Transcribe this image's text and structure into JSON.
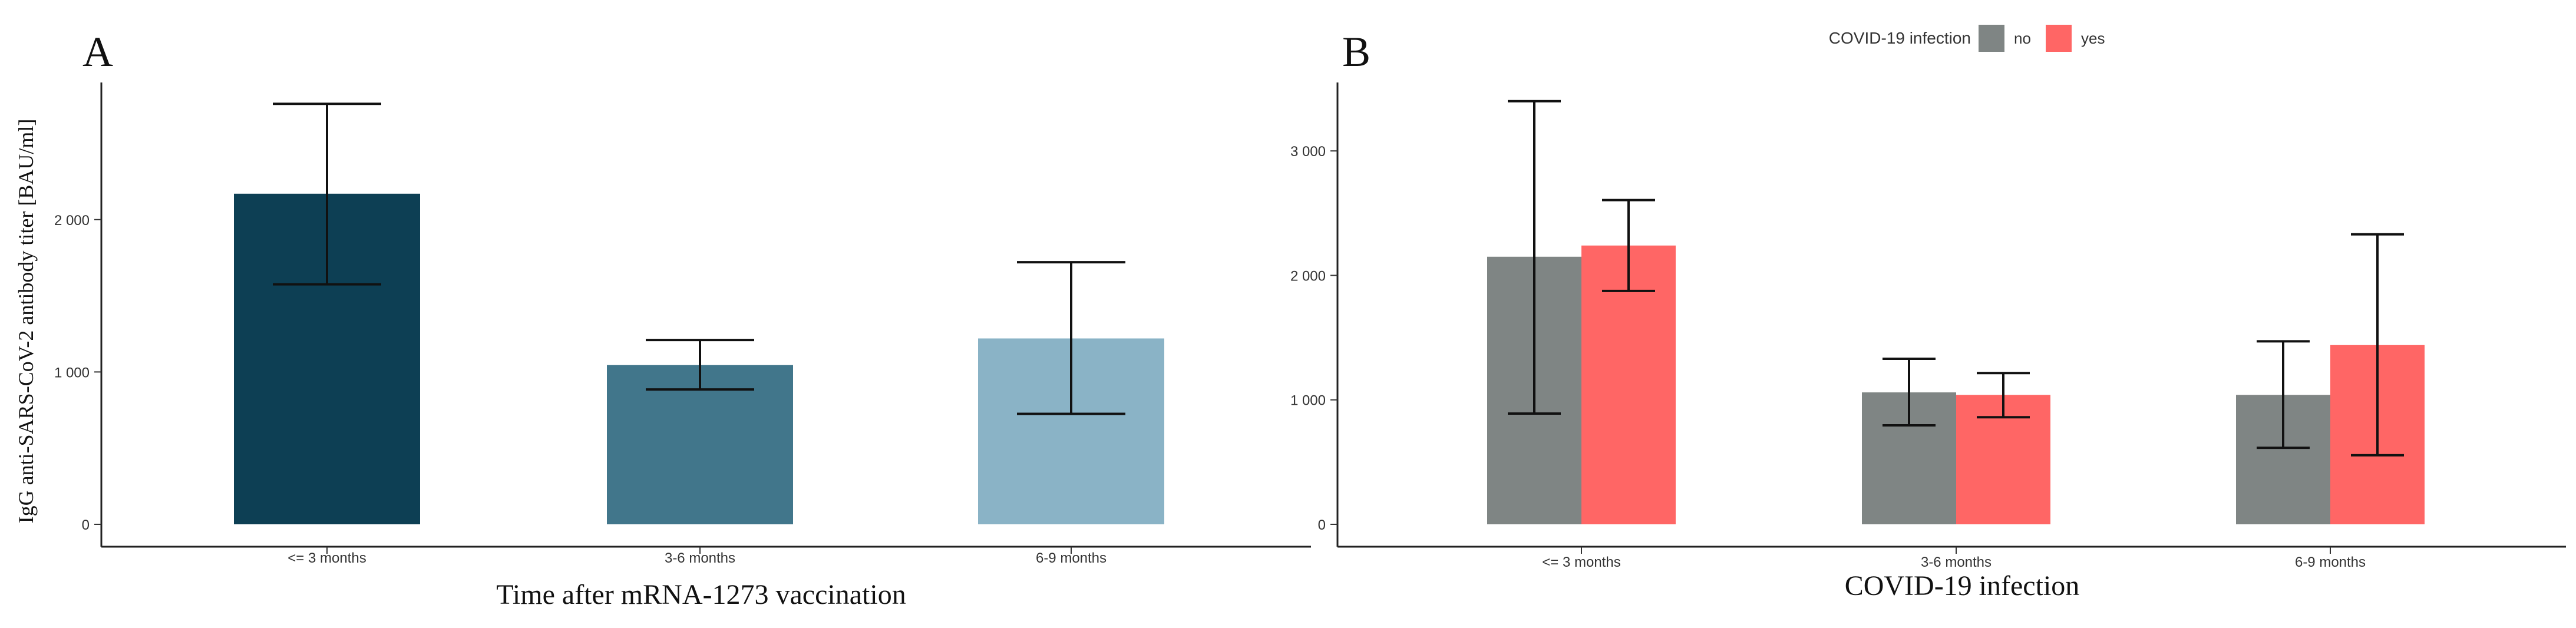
{
  "panel_a": {
    "letter": "A",
    "chart_data": {
      "type": "bar",
      "title": "",
      "xlabel": "Time after mRNA-1273 vaccination",
      "ylabel": "IgG anti-SARS-CoV-2 antibody titer [BAU/ml]",
      "categories": [
        "<= 3 months",
        "3-6 months",
        "6-9 months"
      ],
      "values": [
        2170,
        1045,
        1220
      ],
      "error_low": [
        1575,
        885,
        725
      ],
      "error_high": [
        2760,
        1210,
        1720
      ],
      "bar_colors": [
        "#0d3f54",
        "#41768b",
        "#8ab3c6"
      ],
      "yticks": [
        0,
        1000,
        2000
      ],
      "ytick_labels": [
        "0",
        "1 000",
        "2 000"
      ],
      "ylim": [
        0,
        2900
      ]
    }
  },
  "panel_b": {
    "letter": "B",
    "chart_data": {
      "type": "bar",
      "title": "",
      "xlabel": "COVID-19 infection",
      "ylabel": "",
      "categories": [
        "<= 3 months",
        "3-6 months",
        "6-9 months"
      ],
      "legend_title": "COVID-19 infection",
      "legend_position": "top",
      "series": [
        {
          "name": "no",
          "color": "#7f8584",
          "values": [
            2150,
            1060,
            1040
          ],
          "error_low": [
            890,
            795,
            615
          ],
          "error_high": [
            3400,
            1330,
            1470
          ]
        },
        {
          "name": "yes",
          "color": "#ff6665",
          "values": [
            2240,
            1040,
            1440
          ],
          "error_low": [
            1875,
            860,
            555
          ],
          "error_high": [
            2605,
            1215,
            2330
          ]
        }
      ],
      "yticks": [
        0,
        1000,
        2000,
        3000
      ],
      "ytick_labels": [
        "0",
        "1 000",
        "2 000",
        "3 000"
      ],
      "ylim": [
        0,
        3550
      ]
    }
  }
}
